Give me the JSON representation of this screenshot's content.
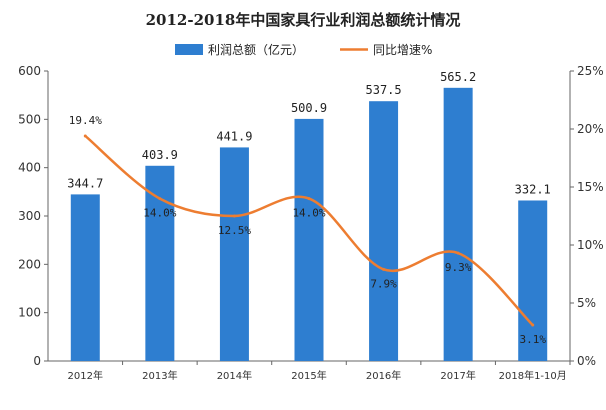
{
  "chart_data": {
    "type": "bar+line",
    "title": "2012-2018年中国家具行业利润总额统计情况",
    "categories": [
      "2012年",
      "2013年",
      "2014年",
      "2015年",
      "2016年",
      "2017年",
      "2018年1-10月"
    ],
    "series": [
      {
        "name": "利润总额（亿元）",
        "type": "bar",
        "axis": "left",
        "values": [
          344.7,
          403.9,
          441.9,
          500.9,
          537.5,
          565.2,
          332.1
        ],
        "labels": [
          "344.7",
          "403.9",
          "441.9",
          "500.9",
          "537.5",
          "565.2",
          "332.1"
        ]
      },
      {
        "name": "同比增速%",
        "type": "line",
        "axis": "right",
        "values": [
          19.4,
          14.0,
          12.5,
          14.0,
          7.9,
          9.3,
          3.1
        ],
        "labels": [
          "19.4%",
          "14.0%",
          "12.5%",
          "14.0%",
          "7.9%",
          "9.3%",
          "3.1%"
        ]
      }
    ],
    "y_left": {
      "min": 0,
      "max": 600,
      "ticks": [
        "0",
        "100",
        "200",
        "300",
        "400",
        "500",
        "600"
      ]
    },
    "y_right": {
      "min": 0,
      "max": 25,
      "ticks": [
        "0%",
        "5%",
        "10%",
        "15%",
        "20%",
        "25%"
      ]
    },
    "legend_position": "top-center",
    "grid": false,
    "colors": {
      "bar": "#2e7ed0",
      "line": "#ed7d31"
    }
  }
}
